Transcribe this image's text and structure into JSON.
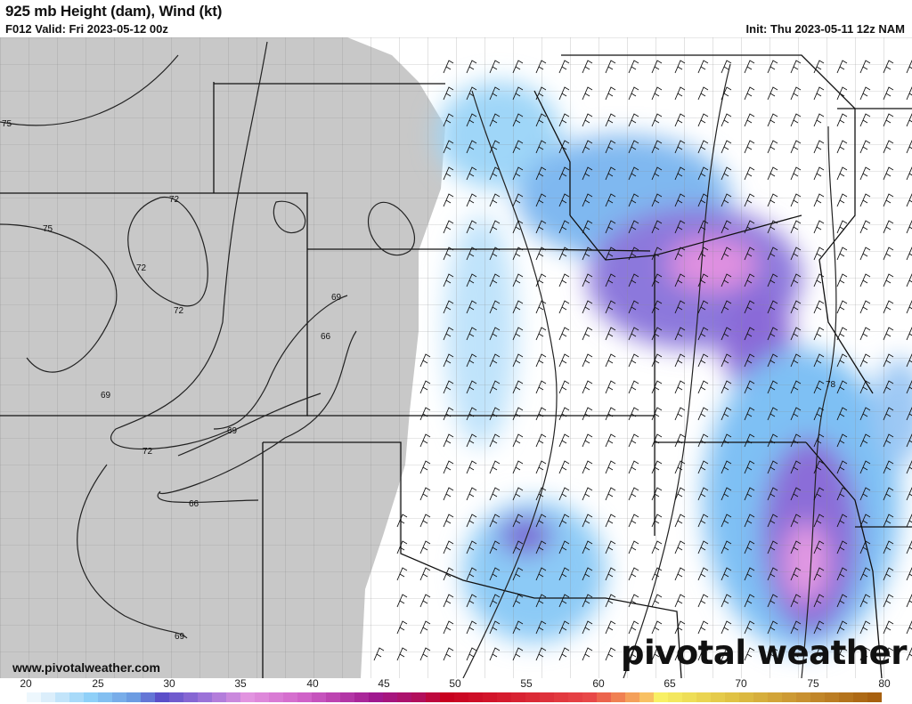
{
  "header": {
    "title": "925 mb Height (dam), Wind (kt)",
    "valid": "F012 Valid: Fri 2023-05-12 00z",
    "init": "Init: Thu 2023-05-11 12z NAM"
  },
  "map": {
    "contour_labels": [
      "75",
      "72",
      "75",
      "72",
      "72",
      "69",
      "66",
      "69",
      "72",
      "69",
      "66",
      "69",
      "78"
    ],
    "terrain_mask_color": "#c8c8c8",
    "border_color": "#111111",
    "county_color": "#777777"
  },
  "footer": {
    "url": "www.pivotalweather.com",
    "logo": "pivotal weather"
  },
  "colorbar": {
    "units": "kt",
    "min": 20,
    "max": 81,
    "tick_labels": [
      "20",
      "25",
      "30",
      "35",
      "40",
      "45",
      "50",
      "55",
      "60",
      "65",
      "70",
      "75",
      "80"
    ],
    "stops": [
      {
        "v": 20,
        "c": "#ffffff"
      },
      {
        "v": 22,
        "c": "#dbeefb"
      },
      {
        "v": 25,
        "c": "#8fd0f8"
      },
      {
        "v": 28,
        "c": "#6c9ce2"
      },
      {
        "v": 30,
        "c": "#5b4fc9"
      },
      {
        "v": 33,
        "c": "#9b72d8"
      },
      {
        "v": 36,
        "c": "#e294e0"
      },
      {
        "v": 40,
        "c": "#d062c8"
      },
      {
        "v": 45,
        "c": "#a0188f"
      },
      {
        "v": 48,
        "c": "#b20f5c"
      },
      {
        "v": 50,
        "c": "#c8001f"
      },
      {
        "v": 55,
        "c": "#d82232"
      },
      {
        "v": 60,
        "c": "#e84848"
      },
      {
        "v": 62,
        "c": "#f08052"
      },
      {
        "v": 64,
        "c": "#f8c062"
      },
      {
        "v": 65,
        "c": "#f8f064"
      },
      {
        "v": 70,
        "c": "#e0c244"
      },
      {
        "v": 75,
        "c": "#c89030"
      },
      {
        "v": 81,
        "c": "#a05608"
      }
    ]
  }
}
